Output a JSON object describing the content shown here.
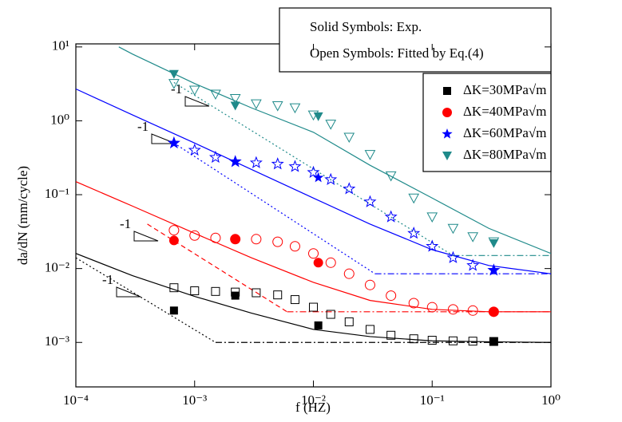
{
  "chart_data": {
    "type": "scatter",
    "log_x": true,
    "log_y": true,
    "xlabel": "f (HZ)",
    "ylabel": "da/dN (mm/cycle)",
    "xlim": [
      0.0001,
      1
    ],
    "ylim": [
      0.00025,
      11
    ],
    "xticks": [
      {
        "value": 0.0001,
        "label": "10⁻⁴"
      },
      {
        "value": 0.001,
        "label": "10⁻³"
      },
      {
        "value": 0.01,
        "label": "10⁻²"
      },
      {
        "value": 0.1,
        "label": "10⁻¹"
      },
      {
        "value": 1,
        "label": "10⁰"
      }
    ],
    "yticks": [
      {
        "value": 0.001,
        "label": "10⁻³"
      },
      {
        "value": 0.01,
        "label": "10⁻²"
      },
      {
        "value": 0.1,
        "label": "10⁻¹"
      },
      {
        "value": 1,
        "label": "10⁰"
      },
      {
        "value": 10,
        "label": "10¹"
      }
    ],
    "annotations": [
      "Solid Symbols: Exp.",
      "Open Symbols: Fitted by Eq.(4)"
    ],
    "slope_labels": [
      "-1",
      "-1",
      "-1",
      "-1"
    ],
    "legend_position": "upper right",
    "series": [
      {
        "name": "ΔK=30MPa√m",
        "color": "#000000",
        "marker": "square",
        "x": [
          0.00067,
          0.0022,
          0.011,
          0.33
        ],
        "values": [
          0.0027,
          0.0043,
          0.0017,
          0.00103
        ]
      },
      {
        "name": "ΔK=40MPa√m",
        "color": "#ff0000",
        "marker": "circle",
        "x": [
          0.00067,
          0.0022,
          0.011,
          0.33
        ],
        "values": [
          0.024,
          0.025,
          0.012,
          0.0026
        ]
      },
      {
        "name": "ΔK=60MPa√m",
        "color": "#0000ff",
        "marker": "star",
        "x": [
          0.00067,
          0.0022,
          0.011,
          0.33
        ],
        "values": [
          0.5,
          0.28,
          0.17,
          0.0095
        ]
      },
      {
        "name": "ΔK=80MPa√m",
        "color": "#1f8a8a",
        "marker": "triangle-down",
        "x": [
          0.00067,
          0.0022,
          0.011,
          0.33
        ],
        "values": [
          4.3,
          1.6,
          1.15,
          0.022
        ]
      }
    ],
    "fitted": [
      {
        "color": "#000000",
        "marker": "square",
        "x": [
          0.00067,
          0.001,
          0.0015,
          0.0022,
          0.0033,
          0.005,
          0.007,
          0.01,
          0.014,
          0.02,
          0.03,
          0.045,
          0.07,
          0.1,
          0.15,
          0.22,
          0.33
        ],
        "values": [
          0.0055,
          0.005,
          0.0049,
          0.0048,
          0.0047,
          0.0044,
          0.0038,
          0.003,
          0.0024,
          0.0019,
          0.0015,
          0.00125,
          0.00112,
          0.00107,
          0.00105,
          0.00104,
          0.00103
        ]
      },
      {
        "color": "#ff0000",
        "marker": "circle",
        "x": [
          0.00067,
          0.001,
          0.0015,
          0.0022,
          0.0033,
          0.005,
          0.007,
          0.01,
          0.014,
          0.02,
          0.03,
          0.045,
          0.07,
          0.1,
          0.15,
          0.22,
          0.33
        ],
        "values": [
          0.033,
          0.028,
          0.026,
          0.025,
          0.025,
          0.023,
          0.02,
          0.016,
          0.012,
          0.0085,
          0.006,
          0.0043,
          0.0034,
          0.003,
          0.0028,
          0.0027,
          0.0026
        ]
      },
      {
        "color": "#0000ff",
        "marker": "star",
        "x": [
          0.00067,
          0.001,
          0.0015,
          0.0022,
          0.0033,
          0.005,
          0.007,
          0.01,
          0.014,
          0.02,
          0.03,
          0.045,
          0.07,
          0.1,
          0.15,
          0.22,
          0.33
        ],
        "values": [
          0.5,
          0.4,
          0.32,
          0.28,
          0.27,
          0.26,
          0.24,
          0.2,
          0.16,
          0.12,
          0.08,
          0.05,
          0.03,
          0.02,
          0.014,
          0.011,
          0.0095
        ]
      },
      {
        "color": "#1f8a8a",
        "marker": "triangle-down",
        "x": [
          0.00067,
          0.001,
          0.0015,
          0.0022,
          0.0033,
          0.005,
          0.007,
          0.01,
          0.014,
          0.02,
          0.03,
          0.045,
          0.07,
          0.1,
          0.15,
          0.22,
          0.33
        ],
        "values": [
          3.2,
          2.6,
          2.3,
          2.0,
          1.7,
          1.6,
          1.5,
          1.2,
          0.9,
          0.6,
          0.35,
          0.18,
          0.09,
          0.05,
          0.035,
          0.027,
          0.023
        ]
      }
    ],
    "curves": [
      {
        "color": "#000000",
        "dash": "solid",
        "x": [
          0.0001,
          0.0003,
          0.001,
          0.003,
          0.01,
          0.03,
          0.1,
          0.3,
          1
        ],
        "values": [
          0.016,
          0.008,
          0.0042,
          0.0025,
          0.0015,
          0.0012,
          0.00105,
          0.00102,
          0.001
        ]
      },
      {
        "color": "#ff0000",
        "dash": "solid",
        "x": [
          0.0001,
          0.0003,
          0.001,
          0.003,
          0.01,
          0.03,
          0.1,
          0.3,
          1
        ],
        "values": [
          0.15,
          0.07,
          0.03,
          0.014,
          0.0065,
          0.0037,
          0.0028,
          0.0026,
          0.0026
        ]
      },
      {
        "color": "#0000ff",
        "dash": "solid",
        "x": [
          0.0001,
          0.0003,
          0.001,
          0.003,
          0.01,
          0.03,
          0.1,
          0.3,
          1
        ],
        "values": [
          2.7,
          1.2,
          0.5,
          0.22,
          0.09,
          0.04,
          0.018,
          0.011,
          0.0085
        ]
      },
      {
        "color": "#1f8a8a",
        "dash": "solid",
        "x": [
          0.00023,
          0.0003,
          0.001,
          0.003,
          0.01,
          0.03,
          0.1,
          0.3,
          1
        ],
        "values": [
          10,
          8,
          3.2,
          1.5,
          0.7,
          0.25,
          0.09,
          0.035,
          0.016
        ]
      },
      {
        "color": "#000000",
        "dash": "dotted",
        "x": [
          0.0001,
          0.0015
        ],
        "values": [
          0.014,
          0.001
        ]
      },
      {
        "color": "#000000",
        "dash": "dashdot",
        "x": [
          0.0015,
          1
        ],
        "values": [
          0.001,
          0.001
        ]
      },
      {
        "color": "#ff0000",
        "dash": "dashed",
        "x": [
          0.0004,
          0.006
        ],
        "values": [
          0.04,
          0.0026
        ]
      },
      {
        "color": "#ff0000",
        "dash": "dashdot",
        "x": [
          0.006,
          1
        ],
        "values": [
          0.0026,
          0.0026
        ]
      },
      {
        "color": "#0000ff",
        "dash": "dotted",
        "x": [
          0.00067,
          0.033
        ],
        "values": [
          0.5,
          0.0085
        ]
      },
      {
        "color": "#0000ff",
        "dash": "dashdot",
        "x": [
          0.033,
          1
        ],
        "values": [
          0.0085,
          0.0085
        ]
      },
      {
        "color": "#1f8a8a",
        "dash": "dotted",
        "x": [
          0.00067,
          0.15
        ],
        "values": [
          3.3,
          0.015
        ]
      },
      {
        "color": "#1f8a8a",
        "dash": "dashdot",
        "x": [
          0.15,
          1
        ],
        "values": [
          0.015,
          0.015
        ]
      }
    ]
  }
}
